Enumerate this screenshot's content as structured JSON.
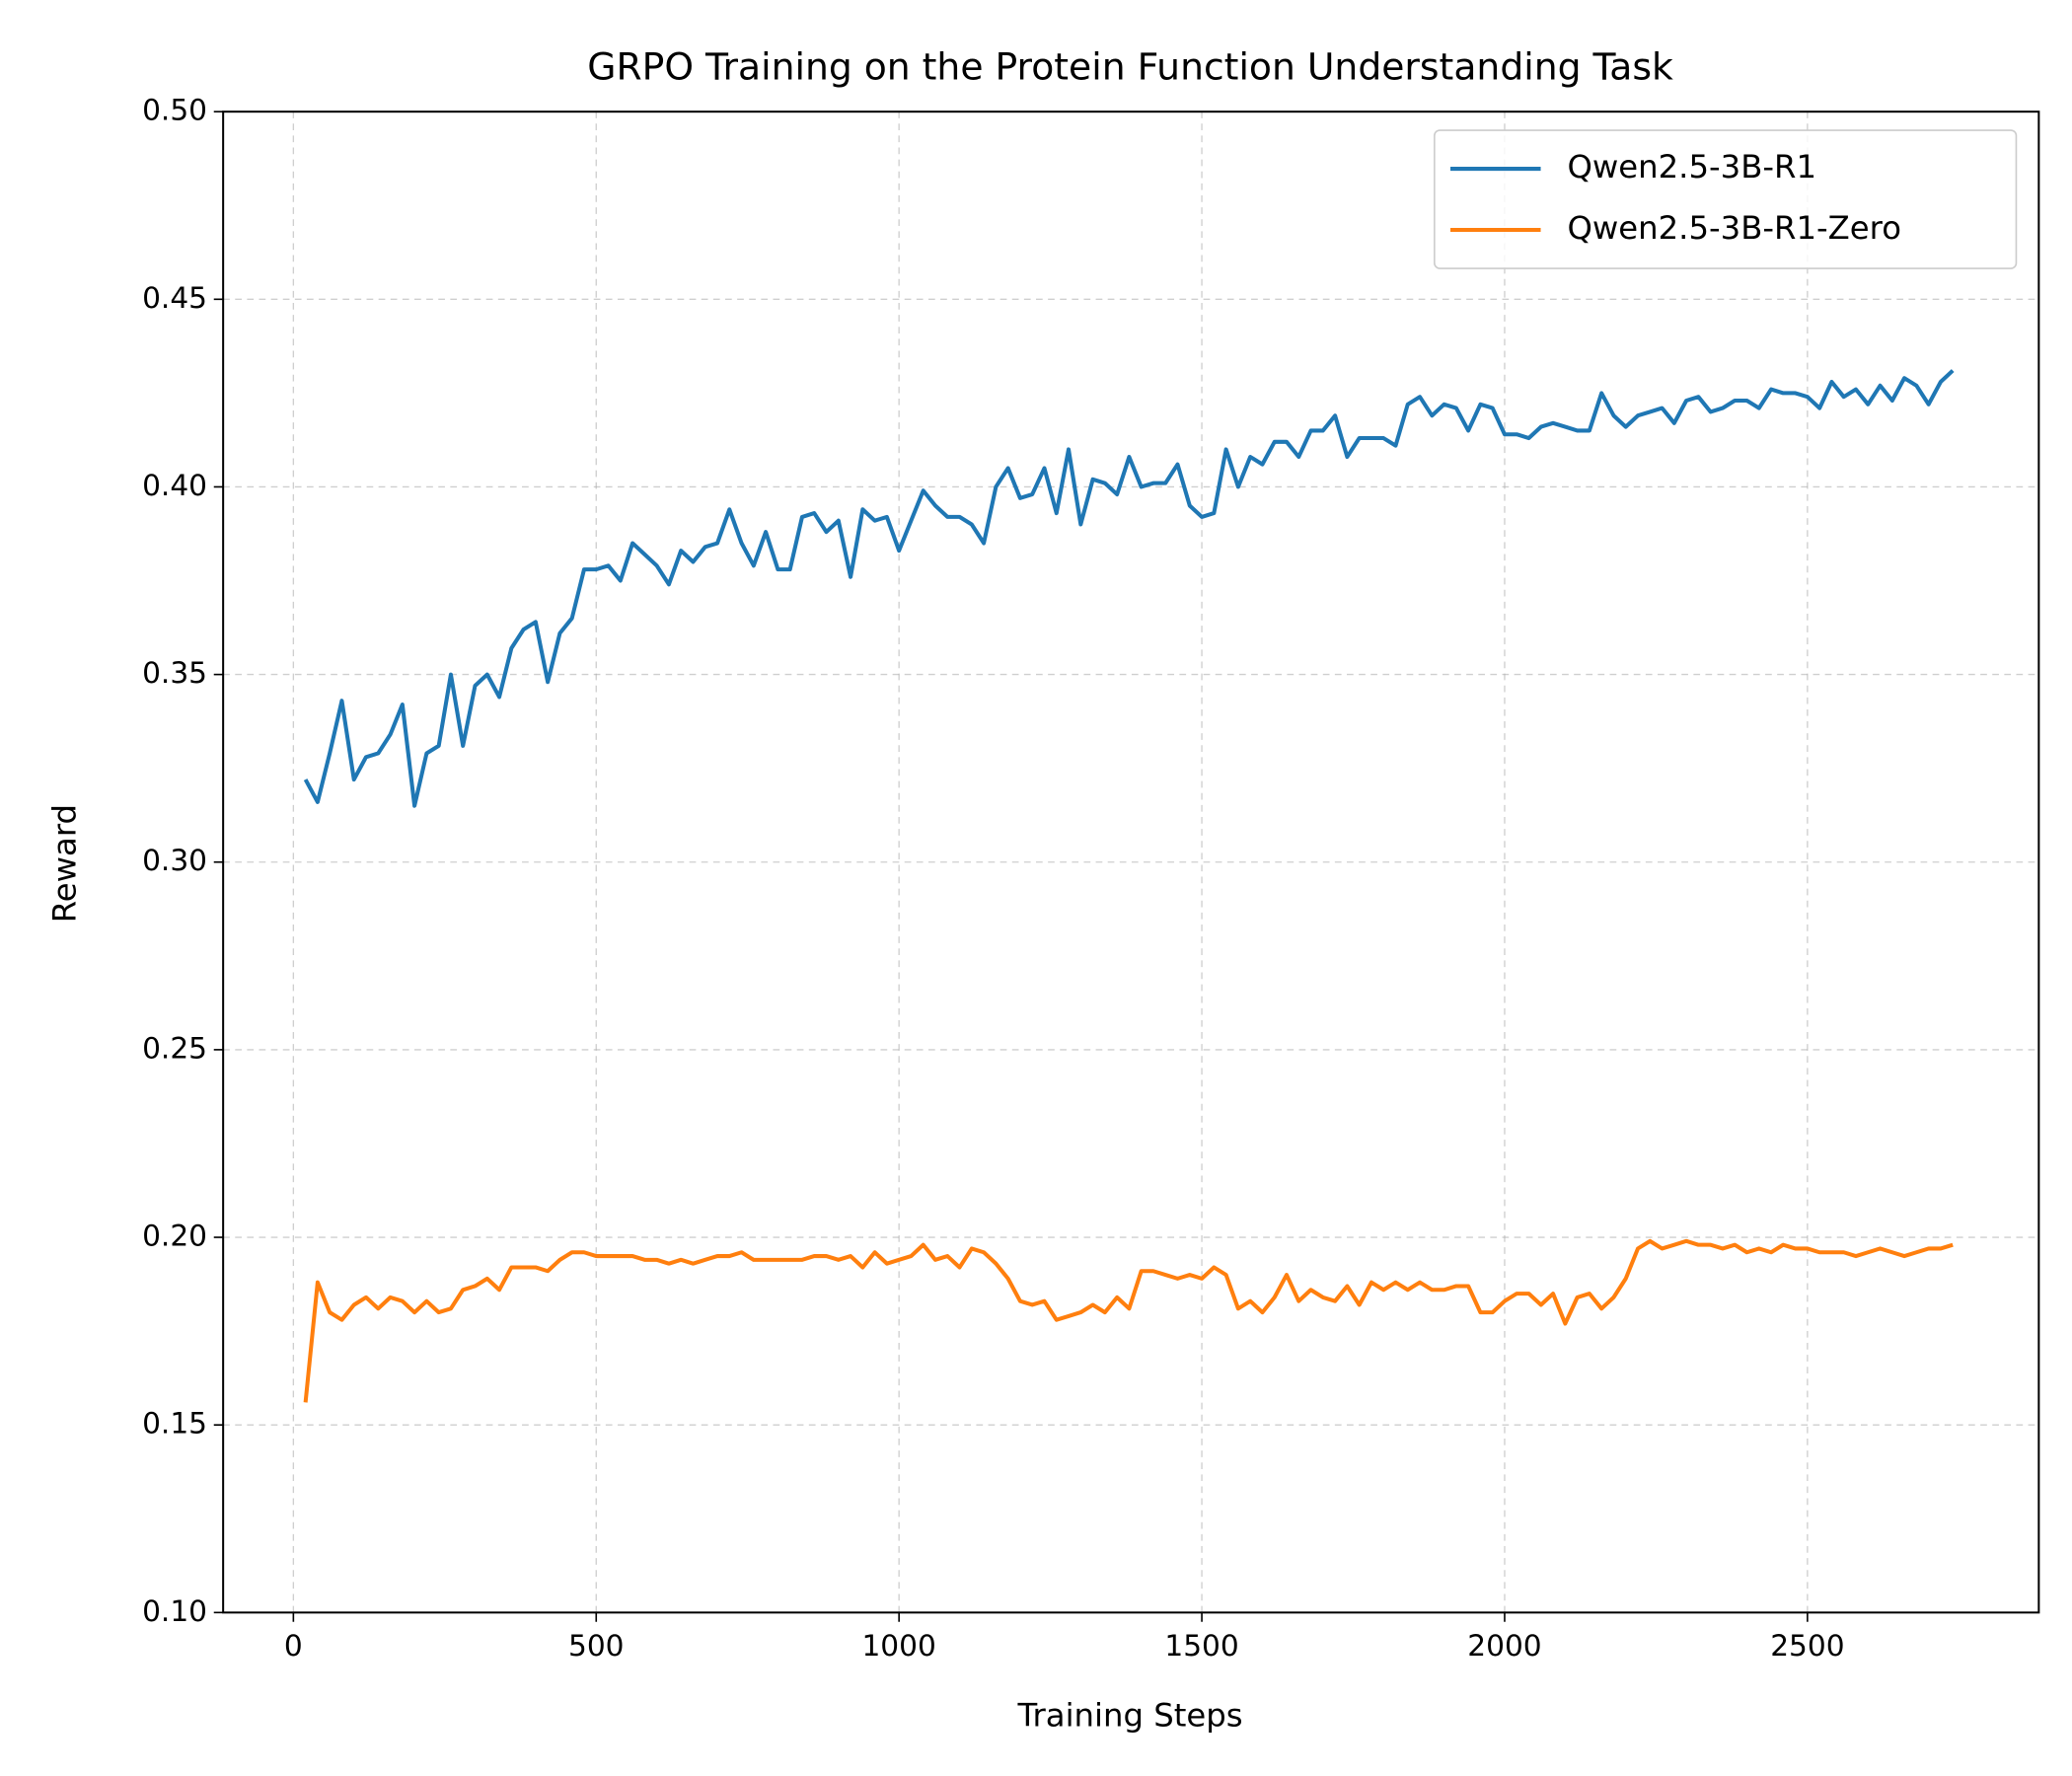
{
  "chart_data": {
    "type": "line",
    "title": "GRPO Training on the Protein Function Understanding Task",
    "xlabel": "Training Steps",
    "ylabel": "Reward",
    "x": [
      20,
      40,
      60,
      80,
      100,
      120,
      140,
      160,
      180,
      200,
      220,
      240,
      260,
      280,
      300,
      320,
      340,
      360,
      380,
      400,
      420,
      440,
      460,
      480,
      500,
      520,
      540,
      560,
      580,
      600,
      620,
      640,
      660,
      680,
      700,
      720,
      740,
      760,
      780,
      800,
      820,
      840,
      860,
      880,
      900,
      920,
      940,
      960,
      980,
      1000,
      1020,
      1040,
      1060,
      1080,
      1100,
      1120,
      1140,
      1160,
      1180,
      1200,
      1220,
      1240,
      1260,
      1280,
      1300,
      1320,
      1340,
      1360,
      1380,
      1400,
      1420,
      1440,
      1460,
      1480,
      1500,
      1520,
      1540,
      1560,
      1580,
      1600,
      1620,
      1640,
      1660,
      1680,
      1700,
      1720,
      1740,
      1760,
      1780,
      1800,
      1820,
      1840,
      1860,
      1880,
      1900,
      1920,
      1940,
      1960,
      1980,
      2000,
      2020,
      2040,
      2060,
      2080,
      2100,
      2120,
      2140,
      2160,
      2180,
      2200,
      2220,
      2240,
      2260,
      2280,
      2300,
      2320,
      2340,
      2360,
      2380,
      2400,
      2420,
      2440,
      2460,
      2480,
      2500,
      2520,
      2540,
      2560,
      2580,
      2600,
      2620,
      2640,
      2660,
      2680,
      2700,
      2720,
      2740
    ],
    "series": [
      {
        "name": "Qwen2.5-3B-R1",
        "color": "#1f77b4",
        "values": [
          0.322,
          0.316,
          0.329,
          0.343,
          0.322,
          0.328,
          0.329,
          0.334,
          0.342,
          0.315,
          0.329,
          0.331,
          0.35,
          0.331,
          0.347,
          0.35,
          0.344,
          0.357,
          0.362,
          0.364,
          0.348,
          0.361,
          0.365,
          0.378,
          0.378,
          0.379,
          0.375,
          0.385,
          0.382,
          0.379,
          0.374,
          0.383,
          0.38,
          0.384,
          0.385,
          0.394,
          0.385,
          0.379,
          0.388,
          0.378,
          0.378,
          0.392,
          0.393,
          0.388,
          0.391,
          0.376,
          0.394,
          0.391,
          0.392,
          0.383,
          0.391,
          0.399,
          0.395,
          0.392,
          0.392,
          0.39,
          0.385,
          0.4,
          0.405,
          0.397,
          0.398,
          0.405,
          0.393,
          0.41,
          0.39,
          0.402,
          0.401,
          0.398,
          0.408,
          0.4,
          0.401,
          0.401,
          0.406,
          0.395,
          0.392,
          0.393,
          0.41,
          0.4,
          0.408,
          0.406,
          0.412,
          0.412,
          0.408,
          0.415,
          0.415,
          0.419,
          0.408,
          0.413,
          0.413,
          0.413,
          0.411,
          0.422,
          0.424,
          0.419,
          0.422,
          0.421,
          0.415,
          0.422,
          0.421,
          0.414,
          0.414,
          0.413,
          0.416,
          0.417,
          0.416,
          0.415,
          0.415,
          0.425,
          0.419,
          0.416,
          0.419,
          0.42,
          0.421,
          0.417,
          0.423,
          0.424,
          0.42,
          0.421,
          0.423,
          0.423,
          0.421,
          0.426,
          0.425,
          0.425,
          0.424,
          0.421,
          0.428,
          0.424,
          0.426,
          0.422,
          0.427,
          0.423,
          0.429,
          0.427,
          0.422,
          0.428,
          0.431
        ]
      },
      {
        "name": "Qwen2.5-3B-R1-Zero",
        "color": "#ff7f0e",
        "values": [
          0.156,
          0.188,
          0.18,
          0.178,
          0.182,
          0.184,
          0.181,
          0.184,
          0.183,
          0.18,
          0.183,
          0.18,
          0.181,
          0.186,
          0.187,
          0.189,
          0.186,
          0.192,
          0.192,
          0.192,
          0.191,
          0.194,
          0.196,
          0.196,
          0.195,
          0.195,
          0.195,
          0.195,
          0.194,
          0.194,
          0.193,
          0.194,
          0.193,
          0.194,
          0.195,
          0.195,
          0.196,
          0.194,
          0.194,
          0.194,
          0.194,
          0.194,
          0.195,
          0.195,
          0.194,
          0.195,
          0.192,
          0.196,
          0.193,
          0.194,
          0.195,
          0.198,
          0.194,
          0.195,
          0.192,
          0.197,
          0.196,
          0.193,
          0.189,
          0.183,
          0.182,
          0.183,
          0.178,
          0.179,
          0.18,
          0.182,
          0.18,
          0.184,
          0.181,
          0.191,
          0.191,
          0.19,
          0.189,
          0.19,
          0.189,
          0.192,
          0.19,
          0.181,
          0.183,
          0.18,
          0.184,
          0.19,
          0.183,
          0.186,
          0.184,
          0.183,
          0.187,
          0.182,
          0.188,
          0.186,
          0.188,
          0.186,
          0.188,
          0.186,
          0.186,
          0.187,
          0.187,
          0.18,
          0.18,
          0.183,
          0.185,
          0.185,
          0.182,
          0.185,
          0.177,
          0.184,
          0.185,
          0.181,
          0.184,
          0.189,
          0.197,
          0.199,
          0.197,
          0.198,
          0.199,
          0.198,
          0.198,
          0.197,
          0.198,
          0.196,
          0.197,
          0.196,
          0.198,
          0.197,
          0.197,
          0.196,
          0.196,
          0.196,
          0.195,
          0.196,
          0.197,
          0.196,
          0.195,
          0.196,
          0.197,
          0.197,
          0.198
        ]
      }
    ],
    "xlim": [
      -116,
      2882
    ],
    "ylim": [
      0.1,
      0.5
    ],
    "xticks": [
      0,
      500,
      1000,
      1500,
      2000,
      2500
    ],
    "yticks": [
      {
        "value": 0.1,
        "label": "0.10"
      },
      0.15,
      {
        "value": 0.2,
        "label": "0.20"
      },
      0.25,
      {
        "value": 0.3,
        "label": "0.30"
      },
      0.35,
      {
        "value": 0.4,
        "label": "0.40"
      },
      0.45,
      {
        "value": 0.5,
        "label": "0.50"
      }
    ],
    "grid": true,
    "legend": "upper right"
  }
}
